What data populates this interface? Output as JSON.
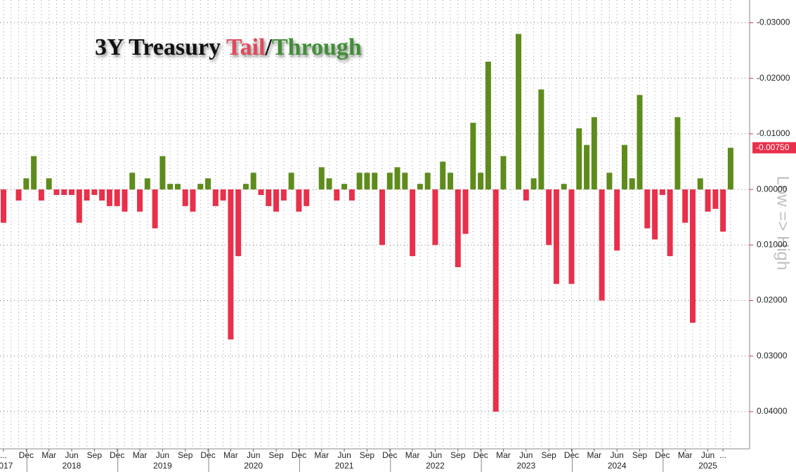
{
  "chart_data": {
    "type": "bar",
    "title": {
      "lead": "3Y Treasury ",
      "tail": "Tail",
      "slash": "/",
      "through": "Through"
    },
    "axis_note": "Low => High",
    "categories": [
      "...",
      null,
      null,
      "Dec",
      null,
      null,
      "Mar",
      null,
      null,
      "Jun",
      null,
      null,
      "Sep",
      null,
      null,
      "Dec",
      null,
      null,
      "Mar",
      null,
      null,
      "Jun",
      null,
      null,
      "Sep",
      null,
      null,
      "Dec",
      null,
      null,
      "Mar",
      null,
      null,
      "Jun",
      null,
      null,
      "Sep",
      null,
      null,
      "Dec",
      null,
      null,
      "Mar",
      null,
      null,
      "Jun",
      null,
      null,
      "Sep",
      null,
      null,
      "Dec",
      null,
      null,
      "Mar",
      null,
      null,
      "Jun",
      null,
      null,
      "Sep",
      null,
      null,
      "Dec",
      null,
      null,
      "Mar",
      null,
      null,
      "Jun",
      null,
      null,
      "Sep",
      null,
      null,
      "Dec",
      null,
      null,
      "Mar",
      null,
      null,
      "Jun",
      null,
      null,
      "Sep",
      null,
      null,
      "Dec",
      null,
      null,
      "Mar",
      null,
      null,
      "Jun",
      null,
      "...",
      null
    ],
    "years": [
      "2017",
      null,
      null,
      null,
      null,
      null,
      null,
      null,
      null,
      "2018",
      null,
      null,
      null,
      null,
      null,
      null,
      null,
      null,
      null,
      null,
      null,
      "2019",
      null,
      null,
      null,
      null,
      null,
      null,
      null,
      null,
      null,
      null,
      null,
      "2020",
      null,
      null,
      null,
      null,
      null,
      null,
      null,
      null,
      null,
      null,
      null,
      "2021",
      null,
      null,
      null,
      null,
      null,
      null,
      null,
      null,
      null,
      null,
      null,
      "2022",
      null,
      null,
      null,
      null,
      null,
      null,
      null,
      null,
      null,
      null,
      null,
      "2023",
      null,
      null,
      null,
      null,
      null,
      null,
      null,
      null,
      null,
      null,
      null,
      "2024",
      null,
      null,
      null,
      null,
      null,
      null,
      null,
      null,
      null,
      null,
      null,
      "2025",
      null,
      null,
      null
    ],
    "values": [
      0.006,
      null,
      0.002,
      -0.002,
      -0.006,
      0.002,
      -0.002,
      0.001,
      0.001,
      0.001,
      0.006,
      0.002,
      0.001,
      0.002,
      0.003,
      0.003,
      0.004,
      -0.003,
      0.004,
      -0.002,
      0.007,
      -0.006,
      -0.001,
      -0.001,
      0.003,
      0.004,
      -0.001,
      -0.002,
      0.003,
      0.002,
      0.027,
      0.012,
      -0.001,
      -0.003,
      0.001,
      0.003,
      0.004,
      0.002,
      -0.003,
      0.004,
      0.003,
      null,
      -0.004,
      -0.002,
      0.002,
      -0.001,
      0.002,
      -0.003,
      -0.003,
      -0.003,
      0.01,
      -0.003,
      -0.004,
      -0.003,
      0.012,
      -0.001,
      -0.003,
      0.01,
      -0.005,
      -0.003,
      0.014,
      0.008,
      -0.012,
      -0.003,
      -0.023,
      0.04,
      -0.006,
      null,
      -0.028,
      0.002,
      -0.002,
      -0.018,
      0.01,
      0.017,
      -0.001,
      0.017,
      -0.011,
      -0.008,
      -0.013,
      0.02,
      -0.003,
      0.011,
      -0.008,
      -0.002,
      -0.017,
      0.007,
      0.009,
      0.001,
      0.012,
      -0.013,
      0.006,
      0.024,
      -0.002,
      0.004,
      0.0035,
      0.0076,
      -0.0075
    ],
    "value_labels": [
      null,
      null,
      null,
      null,
      null,
      null,
      null,
      null,
      null,
      null,
      null,
      null,
      null,
      null,
      null,
      null,
      null,
      null,
      null,
      null,
      null,
      null,
      null,
      null,
      null,
      null,
      null,
      null,
      null,
      null,
      null,
      null,
      null,
      null,
      null,
      null,
      null,
      null,
      null,
      null,
      null,
      null,
      null,
      null,
      null,
      null,
      null,
      null,
      null,
      null,
      null,
      null,
      null,
      null,
      null,
      null,
      null,
      null,
      null,
      null,
      null,
      null,
      null,
      null,
      null,
      null,
      null,
      null,
      null,
      null,
      null,
      null,
      null,
      null,
      null,
      null,
      null,
      null,
      null,
      null,
      null,
      null,
      null,
      null,
      null,
      null,
      null,
      null,
      null,
      null,
      null,
      null,
      null,
      null,
      null,
      null,
      "-0.00750"
    ],
    "tail_color": "#e8304a",
    "through_color": "#5e8c1c",
    "ylim": [
      -0.0341,
      0.0467
    ],
    "y_inverted": true,
    "yticks": [
      {
        "value": -0.03,
        "label": "-0.03000"
      },
      {
        "value": -0.02,
        "label": "-0.02000"
      },
      {
        "value": -0.01,
        "label": "-0.01000"
      },
      {
        "value": 0,
        "label": "0.00000"
      },
      {
        "value": 0.01,
        "label": "0.01000"
      },
      {
        "value": 0.02,
        "label": "0.02000"
      },
      {
        "value": 0.03,
        "label": "0.03000"
      },
      {
        "value": 0.04,
        "label": "0.04000"
      }
    ],
    "grid": true
  }
}
